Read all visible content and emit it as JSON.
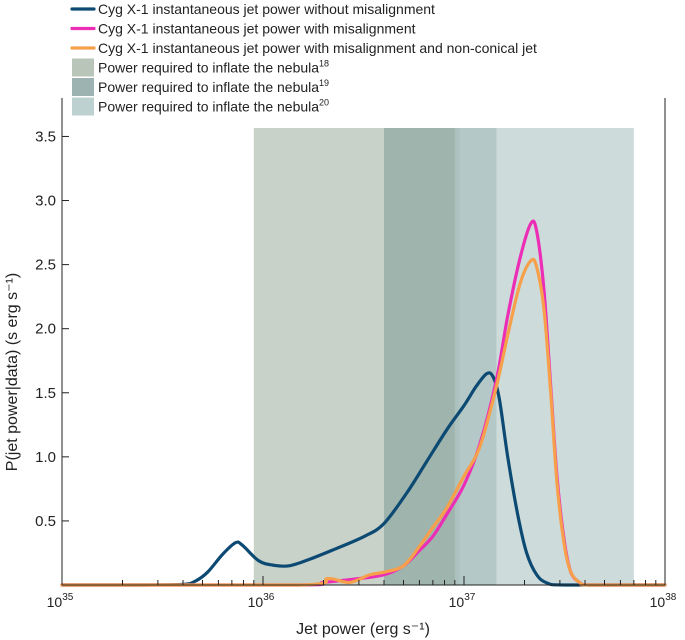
{
  "chart_data": {
    "type": "line",
    "title": "",
    "xlabel": "Jet power (erg s⁻¹)",
    "ylabel": "P(jet power|data) (s erg s⁻¹)",
    "xscale": "log",
    "xlim": [
      1e+35,
      1e+38
    ],
    "ylim": [
      0,
      3.8
    ],
    "x_ticks": [
      {
        "base": "10",
        "exp": "35",
        "value": 1e+35
      },
      {
        "base": "10",
        "exp": "36",
        "value": 1e+36
      },
      {
        "base": "10",
        "exp": "37",
        "value": 1e+37
      },
      {
        "base": "10",
        "exp": "38",
        "value": 1e+38
      }
    ],
    "y_ticks": [
      {
        "label": "0.5",
        "value": 0.5
      },
      {
        "label": "1.0",
        "value": 1.0
      },
      {
        "label": "1.5",
        "value": 1.5
      },
      {
        "label": "2.0",
        "value": 2.0
      },
      {
        "label": "2.5",
        "value": 2.5
      },
      {
        "label": "3.0",
        "value": 3.0
      },
      {
        "label": "3.5",
        "value": 3.5
      }
    ],
    "legend_position": "top-left",
    "series": [
      {
        "name": "Cyg X-1 instantaneous jet power without misalignment",
        "color": "#0d4a73",
        "points": [
          [
            1e+35,
            0
          ],
          [
            2.5e+35,
            0
          ],
          [
            4e+35,
            0.005
          ],
          [
            4.6e+35,
            0.03
          ],
          [
            5.3e+35,
            0.1
          ],
          [
            6.3e+35,
            0.24
          ],
          [
            7.3e+35,
            0.33
          ],
          [
            7.9e+35,
            0.31
          ],
          [
            9.5e+35,
            0.19
          ],
          [
            1.12e+36,
            0.155
          ],
          [
            1.35e+36,
            0.15
          ],
          [
            1.7e+36,
            0.2
          ],
          [
            2.2e+36,
            0.27
          ],
          [
            3.2e+36,
            0.38
          ],
          [
            4e+36,
            0.48
          ],
          [
            5.2e+36,
            0.72
          ],
          [
            6.5e+36,
            0.96
          ],
          [
            8.2e+36,
            1.21
          ],
          [
            1e+37,
            1.4
          ],
          [
            1.15e+37,
            1.55
          ],
          [
            1.3e+37,
            1.65
          ],
          [
            1.4e+37,
            1.62
          ],
          [
            1.5e+37,
            1.45
          ],
          [
            1.65e+37,
            1.0
          ],
          [
            1.85e+37,
            0.55
          ],
          [
            2.05e+37,
            0.25
          ],
          [
            2.3e+37,
            0.08
          ],
          [
            2.6e+37,
            0.015
          ],
          [
            3.2e+37,
            0
          ],
          [
            1e+38,
            0
          ]
        ]
      },
      {
        "name": "Cyg X-1 instantaneous jet power with misalignment",
        "color": "#ec2db5",
        "points": [
          [
            1e+35,
            0
          ],
          [
            1.5e+36,
            0
          ],
          [
            2e+36,
            0.02
          ],
          [
            3e+36,
            0.05
          ],
          [
            4e+36,
            0.08
          ],
          [
            5e+36,
            0.15
          ],
          [
            6e+36,
            0.27
          ],
          [
            7e+36,
            0.38
          ],
          [
            8.2e+36,
            0.55
          ],
          [
            1e+37,
            0.78
          ],
          [
            1.2e+37,
            1.1
          ],
          [
            1.45e+37,
            1.6
          ],
          [
            1.65e+37,
            2.1
          ],
          [
            1.9e+37,
            2.55
          ],
          [
            2.15e+37,
            2.82
          ],
          [
            2.3e+37,
            2.76
          ],
          [
            2.5e+37,
            2.3
          ],
          [
            2.7e+37,
            1.55
          ],
          [
            2.9e+37,
            0.85
          ],
          [
            3.15e+37,
            0.35
          ],
          [
            3.4e+37,
            0.1
          ],
          [
            3.8e+37,
            0.015
          ],
          [
            4.2e+37,
            0
          ],
          [
            1e+38,
            0
          ]
        ]
      },
      {
        "name": "Cyg X-1 instantaneous jet power with misalignment and non-conical jet",
        "color": "#f7a04b",
        "points": [
          [
            1e+35,
            0
          ],
          [
            1.5e+36,
            0
          ],
          [
            2.1e+36,
            0.05
          ],
          [
            2.7e+36,
            0.02
          ],
          [
            3.4e+36,
            0.08
          ],
          [
            4e+36,
            0.1
          ],
          [
            5e+36,
            0.15
          ],
          [
            6e+36,
            0.3
          ],
          [
            7e+36,
            0.45
          ],
          [
            8.2e+36,
            0.6
          ],
          [
            1e+37,
            0.85
          ],
          [
            1.2e+37,
            1.08
          ],
          [
            1.45e+37,
            1.55
          ],
          [
            1.65e+37,
            1.95
          ],
          [
            1.9e+37,
            2.35
          ],
          [
            2.15e+37,
            2.53
          ],
          [
            2.3e+37,
            2.48
          ],
          [
            2.5e+37,
            2.15
          ],
          [
            2.7e+37,
            1.5
          ],
          [
            2.9e+37,
            0.8
          ],
          [
            3.15e+37,
            0.32
          ],
          [
            3.4e+37,
            0.1
          ],
          [
            3.8e+37,
            0.015
          ],
          [
            4.2e+37,
            0
          ],
          [
            1e+38,
            0
          ]
        ]
      }
    ],
    "bands": [
      {
        "name": "Power required to inflate the nebula",
        "ref": "18",
        "color": "#b4c0b3",
        "opacity": 0.72,
        "x_range": [
          9e+35,
          9.5e+36
        ]
      },
      {
        "name": "Power required to inflate the nebula",
        "ref": "19",
        "color": "#7c9a97",
        "opacity": 0.55,
        "x_range": [
          4e+36,
          1.45e+37
        ]
      },
      {
        "name": "Power required to inflate the nebula",
        "ref": "20",
        "color": "#b2c9c8",
        "opacity": 0.65,
        "x_range": [
          9e+36,
          7e+37
        ]
      }
    ]
  }
}
